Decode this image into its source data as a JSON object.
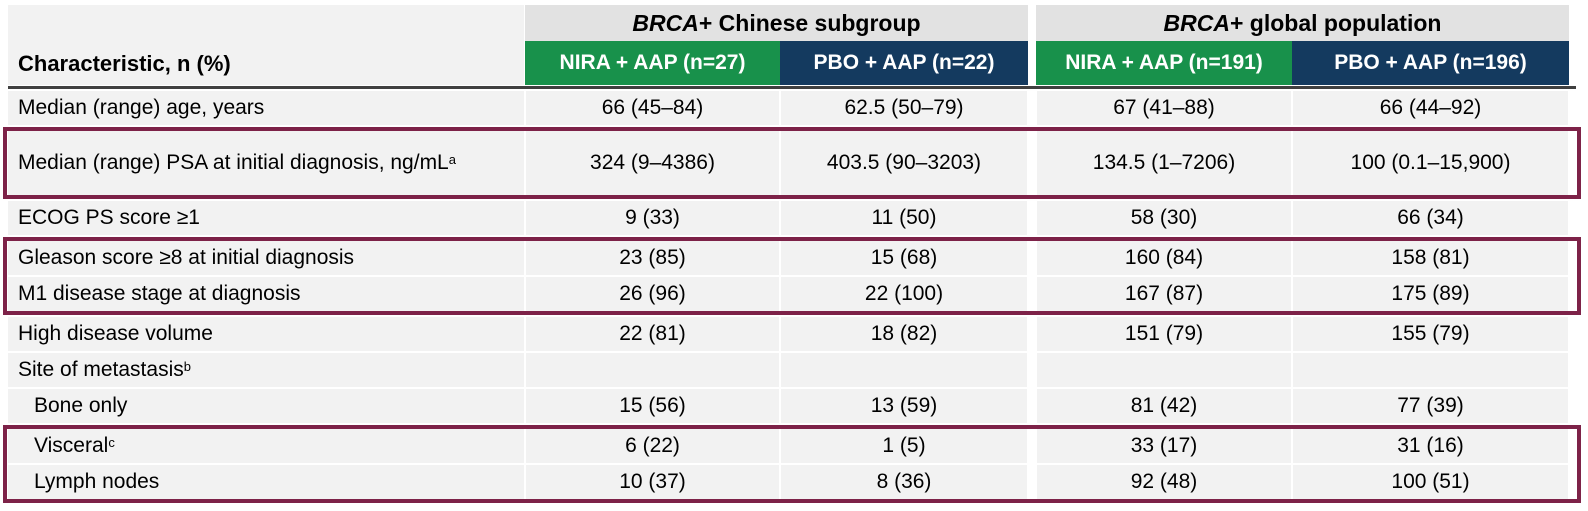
{
  "colors": {
    "green": "#18914b",
    "navy": "#143a5f",
    "group_header_bg": "#e2e2e2",
    "row_bg": "#f2f2f2",
    "highlight_border": "#7d2248",
    "header_rule": "#404040"
  },
  "table": {
    "corner_header": "Characteristic, n (%)",
    "groups": [
      {
        "gene": "BRCA",
        "rest": "+ Chinese subgroup"
      },
      {
        "gene": "BRCA",
        "rest": "+ global population"
      }
    ],
    "columns": [
      {
        "label": "NIRA + AAP (n=27)"
      },
      {
        "label": "PBO + AAP (n=22)"
      },
      {
        "label": "NIRA + AAP (n=191)"
      },
      {
        "label": "PBO + AAP (n=196)"
      }
    ],
    "rows": [
      {
        "label": "Median (range) age, years",
        "sup": "",
        "values": [
          "66 (45–84)",
          "62.5 (50–79)",
          "67 (41–88)",
          "66 (44–92)"
        ]
      },
      {
        "label": "Median (range) PSA at initial diagnosis, ng/mL",
        "sup": "a",
        "values": [
          "324 (9–4386)",
          "403.5 (90–3203)",
          "134.5 (1–7206)",
          "100 (0.1–15,900)"
        ]
      },
      {
        "label": "ECOG PS score ≥1",
        "sup": "",
        "values": [
          "9 (33)",
          "11 (50)",
          "58 (30)",
          "66 (34)"
        ]
      },
      {
        "label": "Gleason score ≥8 at initial diagnosis",
        "sup": "",
        "values": [
          "23 (85)",
          "15 (68)",
          "160 (84)",
          "158 (81)"
        ]
      },
      {
        "label": "M1 disease stage at diagnosis",
        "sup": "",
        "values": [
          "26 (96)",
          "22 (100)",
          "167 (87)",
          "175 (89)"
        ]
      },
      {
        "label": "High disease volume",
        "sup": "",
        "values": [
          "22 (81)",
          "18 (82)",
          "151 (79)",
          "155 (79)"
        ]
      },
      {
        "label": "Site of metastasis",
        "sup": "b",
        "values": [
          "",
          "",
          "",
          ""
        ]
      },
      {
        "label": "Bone only",
        "sup": "",
        "values": [
          "15 (56)",
          "13 (59)",
          "81 (42)",
          "77 (39)"
        ]
      },
      {
        "label": "Visceral",
        "sup": "c",
        "values": [
          "6 (22)",
          "1 (5)",
          "33 (17)",
          "31 (16)"
        ]
      },
      {
        "label": "Lymph nodes",
        "sup": "",
        "values": [
          "10 (37)",
          "8 (36)",
          "92 (48)",
          "100 (51)"
        ]
      }
    ]
  }
}
